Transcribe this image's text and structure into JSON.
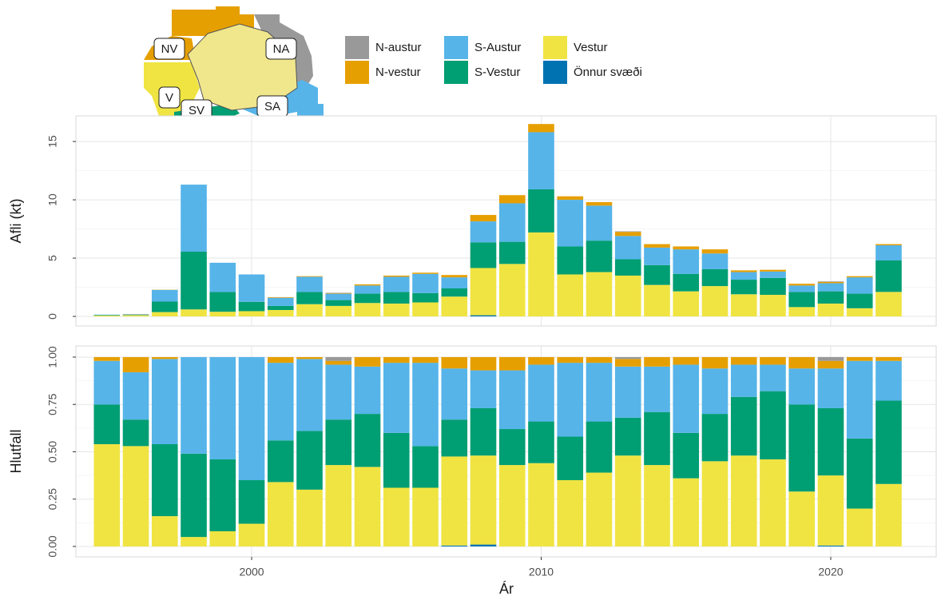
{
  "chart_data": [
    {
      "type": "stacked-bar",
      "y_label": "Afli (kt)",
      "x": [
        1995,
        1996,
        1997,
        1998,
        1999,
        2000,
        2001,
        2002,
        2003,
        2004,
        2005,
        2006,
        2007,
        2008,
        2009,
        2010,
        2011,
        2012,
        2013,
        2014,
        2015,
        2016,
        2017,
        2018,
        2019,
        2020,
        2021,
        2022
      ],
      "xlim": [
        1993.93,
        2023.67
      ],
      "xticks": [
        2000,
        2010,
        2020
      ],
      "ylim": [
        -0.82,
        17.2
      ],
      "yticks": [
        0,
        5,
        10,
        15
      ],
      "grid": true,
      "series": [
        {
          "name": "Önnur svæði",
          "color": "#0072B2",
          "values": [
            0,
            0,
            0,
            0,
            0,
            0,
            0,
            0,
            0,
            0,
            0,
            0,
            0,
            0.1,
            0,
            0,
            0,
            0,
            0,
            0,
            0,
            0,
            0,
            0,
            0,
            0,
            0,
            0
          ]
        },
        {
          "name": "Vestur",
          "color": "#F0E442",
          "values": [
            0.08,
            0.1,
            0.37,
            0.6,
            0.4,
            0.45,
            0.55,
            1.05,
            0.9,
            1.15,
            1.1,
            1.2,
            1.7,
            4.05,
            4.5,
            7.2,
            3.6,
            3.8,
            3.5,
            2.7,
            2.15,
            2.6,
            1.9,
            1.85,
            0.8,
            1.1,
            0.7,
            2.1
          ]
        },
        {
          "name": "S-Vestur",
          "color": "#009E73",
          "values": [
            0.05,
            0.03,
            0.9,
            4.95,
            1.7,
            0.8,
            0.35,
            1.05,
            0.5,
            0.8,
            1.0,
            0.8,
            0.7,
            2.2,
            1.9,
            3.7,
            2.4,
            2.7,
            1.4,
            1.7,
            1.5,
            1.45,
            1.25,
            1.45,
            1.3,
            1.05,
            1.25,
            2.7
          ]
        },
        {
          "name": "S-Austur",
          "color": "#56B4E9",
          "values": [
            0.02,
            0.05,
            1.0,
            5.75,
            2.5,
            2.35,
            0.7,
            1.3,
            0.55,
            0.7,
            1.3,
            1.65,
            0.95,
            1.8,
            3.3,
            4.9,
            4.0,
            3.0,
            2.0,
            1.5,
            2.1,
            1.35,
            0.65,
            0.55,
            0.55,
            0.7,
            1.4,
            1.3
          ]
        },
        {
          "name": "N-vestur",
          "color": "#E69F00",
          "values": [
            0,
            0.02,
            0.02,
            0,
            0,
            0,
            0.05,
            0.05,
            0.05,
            0.1,
            0.1,
            0.1,
            0.2,
            0.55,
            0.7,
            0.7,
            0.3,
            0.3,
            0.35,
            0.3,
            0.25,
            0.35,
            0.15,
            0.15,
            0.15,
            0.1,
            0.1,
            0.1
          ]
        },
        {
          "name": "N-austur",
          "color": "#999999",
          "values": [
            0,
            0,
            0,
            0,
            0,
            0,
            0,
            0,
            0.03,
            0,
            0,
            0,
            0,
            0,
            0,
            0,
            0,
            0,
            0.05,
            0,
            0,
            0,
            0,
            0,
            0,
            0.05,
            0,
            0
          ]
        }
      ]
    },
    {
      "type": "stacked-bar",
      "y_label": "Hlutfall",
      "x_label": "Ár",
      "x": [
        1995,
        1996,
        1997,
        1998,
        1999,
        2000,
        2001,
        2002,
        2003,
        2004,
        2005,
        2006,
        2007,
        2008,
        2009,
        2010,
        2011,
        2012,
        2013,
        2014,
        2015,
        2016,
        2017,
        2018,
        2019,
        2020,
        2021,
        2022
      ],
      "xlim": [
        1993.93,
        2023.67
      ],
      "xticks": [
        2000,
        2010,
        2020
      ],
      "ylim": [
        -0.055,
        1.059
      ],
      "yticks": [
        {
          "value": 0,
          "label": "0.00"
        },
        0.25,
        {
          "value": 0.5,
          "label": "0.50"
        },
        0.75,
        {
          "value": 1,
          "label": "1.00"
        }
      ],
      "grid": true,
      "series": [
        {
          "color": "#0072B2",
          "values": [
            0,
            0,
            0,
            0,
            0,
            0,
            0,
            0,
            0,
            0,
            0,
            0,
            0.005,
            0.01,
            0,
            0,
            0,
            0,
            0,
            0,
            0,
            0,
            0,
            0,
            0,
            0.005,
            0,
            0
          ]
        },
        {
          "color": "#F0E442",
          "values": [
            0.54,
            0.53,
            0.16,
            0.05,
            0.08,
            0.12,
            0.34,
            0.3,
            0.43,
            0.42,
            0.31,
            0.31,
            0.47,
            0.47,
            0.43,
            0.44,
            0.35,
            0.39,
            0.48,
            0.43,
            0.36,
            0.45,
            0.48,
            0.46,
            0.29,
            0.37,
            0.2,
            0.33
          ]
        },
        {
          "color": "#009E73",
          "values": [
            0.21,
            0.14,
            0.38,
            0.44,
            0.38,
            0.23,
            0.22,
            0.31,
            0.24,
            0.28,
            0.29,
            0.22,
            0.195,
            0.25,
            0.19,
            0.22,
            0.23,
            0.27,
            0.2,
            0.28,
            0.24,
            0.25,
            0.31,
            0.36,
            0.46,
            0.355,
            0.37,
            0.44
          ]
        },
        {
          "color": "#56B4E9",
          "values": [
            0.23,
            0.25,
            0.45,
            0.51,
            0.54,
            0.65,
            0.41,
            0.38,
            0.29,
            0.25,
            0.37,
            0.44,
            0.27,
            0.2,
            0.31,
            0.3,
            0.39,
            0.31,
            0.27,
            0.24,
            0.36,
            0.24,
            0.17,
            0.14,
            0.19,
            0.21,
            0.41,
            0.21
          ]
        },
        {
          "color": "#E69F00",
          "values": [
            0.02,
            0.08,
            0.01,
            0,
            0,
            0,
            0.03,
            0.01,
            0.02,
            0.05,
            0.03,
            0.03,
            0.06,
            0.07,
            0.07,
            0.04,
            0.03,
            0.03,
            0.04,
            0.05,
            0.04,
            0.06,
            0.04,
            0.04,
            0.06,
            0.04,
            0.02,
            0.02
          ]
        },
        {
          "color": "#999999",
          "values": [
            0,
            0,
            0,
            0,
            0,
            0,
            0,
            0,
            0.02,
            0,
            0,
            0,
            0,
            0,
            0,
            0,
            0,
            0,
            0.01,
            0,
            0,
            0,
            0,
            0,
            0,
            0.02,
            0,
            0
          ]
        }
      ]
    }
  ],
  "map": {
    "labels": [
      "NV",
      "NA",
      "V",
      "SV",
      "SA"
    ]
  }
}
